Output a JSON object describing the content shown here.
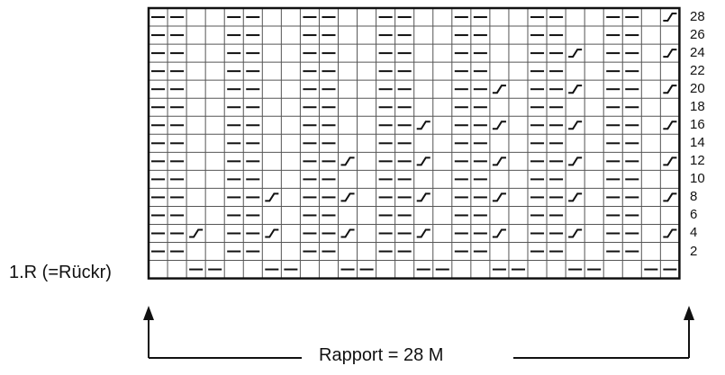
{
  "chart": {
    "stitches_per_row": 28,
    "rows": 15,
    "legend": "1.R (=Rückr)",
    "rapport": "Rapport = 28 M",
    "row_numbers": [
      "28",
      "26",
      "24",
      "22",
      "20",
      "18",
      "16",
      "14",
      "12",
      "10",
      "8",
      "6",
      "4",
      "2"
    ],
    "grid_rows": [
      "PP..PP..PP..PP..PP..PP..PP.X",
      "PP..PP..PP..PP..PP..PP..PP..",
      "PP..PP..PP..PP..PP..PPX.PP.X",
      "PP..PP..PP..PP..PP..PP..PP..",
      "PP..PP..PP..PP..PPX.PPX.PP.X",
      "PP..PP..PP..PP..PP..PP..PP..",
      "PP..PP..PP..PPX.PPX.PPX.PP.X",
      "PP..PP..PP..PP..PP..PP..PP..",
      "PP..PP..PPX.PPX.PPX.PPX.PP.X",
      "PP..PP..PP..PP..PP..PP..PP..",
      "PP..PPX.PPX.PPX.PPX.PPX.PP.X",
      "PP..PP..PP..PP..PP..PP..PP..",
      "PPX.PPX.PPX.PPX.PPX.PPX.PP.X",
      "PP..PP..PP..PP..PP..PP..PP..",
      "..PP..PP..PP..PP..PP..PP..PP"
    ]
  },
  "colors": {
    "line": "#111111",
    "grid": "#555555",
    "background": "#ffffff"
  }
}
